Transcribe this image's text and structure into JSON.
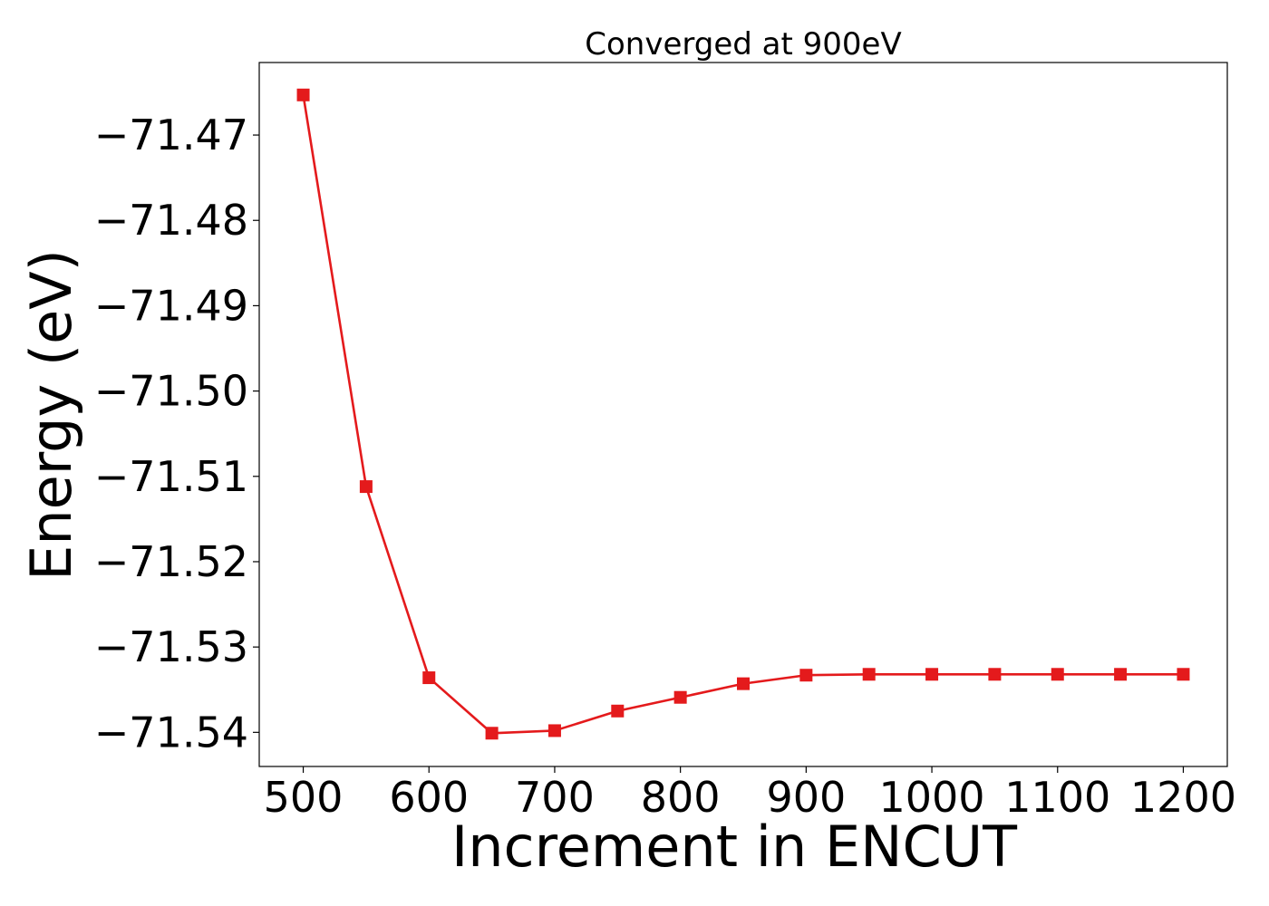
{
  "chart_data": {
    "type": "line",
    "title": "Converged at 900eV",
    "xlabel": "Increment in ENCUT",
    "ylabel": "Energy (eV)",
    "x": [
      500,
      550,
      600,
      650,
      700,
      750,
      800,
      850,
      900,
      950,
      1000,
      1050,
      1100,
      1150,
      1200
    ],
    "series": [
      {
        "values": [
          -71.4653,
          -71.5112,
          -71.5336,
          -71.5401,
          -71.5398,
          -71.5375,
          -71.5359,
          -71.5343,
          -71.5333,
          -71.5332,
          -71.5332,
          -71.5332,
          -71.5332,
          -71.5332,
          -71.5332
        ],
        "color": "#e41a1c",
        "marker": "square"
      }
    ],
    "xlim": [
      465,
      1235
    ],
    "ylim": [
      -71.544,
      -71.4615
    ],
    "xticks": [
      500,
      600,
      700,
      800,
      900,
      1000,
      1100,
      1200
    ],
    "xtick_labels": [
      "500",
      "600",
      "700",
      "800",
      "900",
      "1000",
      "1100",
      "1200"
    ],
    "yticks": [
      -71.47,
      -71.48,
      -71.49,
      -71.5,
      -71.51,
      -71.52,
      -71.53,
      -71.54
    ],
    "ytick_labels": [
      "−71.47",
      "−71.48",
      "−71.49",
      "−71.50",
      "−71.51",
      "−71.52",
      "−71.53",
      "−71.54"
    ],
    "grid": false,
    "legend": "none"
  }
}
